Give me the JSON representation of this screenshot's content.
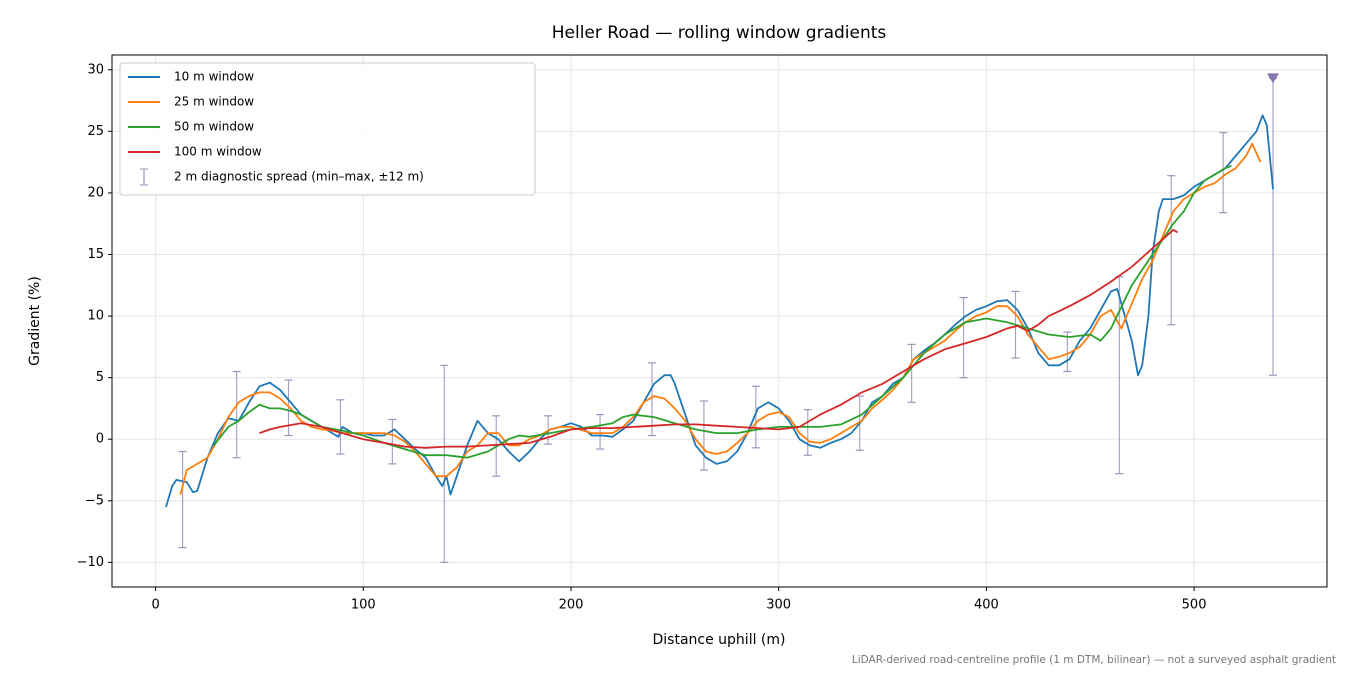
{
  "chart_data": {
    "type": "line",
    "title": "Heller Road — rolling window gradients",
    "xlabel": "Distance uphill (m)",
    "ylabel": "Gradient (%)",
    "footnote": "LiDAR-derived road-centreline profile (1 m DTM, bilinear) — not a surveyed asphalt gradient",
    "xlim": [
      -21,
      564
    ],
    "ylim": [
      -12,
      31.2
    ],
    "xticks": [
      0,
      100,
      200,
      300,
      400,
      500
    ],
    "yticks": [
      {
        "value": -10,
        "label": "−10"
      },
      {
        "value": -5,
        "label": "−5"
      },
      0,
      5,
      10,
      15,
      20,
      25,
      30
    ],
    "grid": true,
    "legend": "upper left",
    "series": [
      {
        "name": "10 m window",
        "color": "#1f77b4",
        "x": [
          5,
          8,
          10,
          15,
          18,
          20,
          25,
          30,
          35,
          40,
          45,
          50,
          55,
          60,
          65,
          70,
          75,
          80,
          85,
          88,
          90,
          95,
          100,
          105,
          110,
          115,
          120,
          125,
          130,
          135,
          138,
          140,
          142,
          145,
          150,
          155,
          160,
          165,
          170,
          175,
          180,
          185,
          190,
          195,
          200,
          205,
          210,
          215,
          220,
          225,
          230,
          235,
          240,
          245,
          248,
          250,
          255,
          260,
          265,
          270,
          275,
          280,
          285,
          290,
          295,
          300,
          305,
          310,
          315,
          320,
          325,
          330,
          335,
          340,
          345,
          350,
          355,
          360,
          365,
          370,
          375,
          380,
          385,
          390,
          395,
          400,
          405,
          410,
          415,
          420,
          425,
          430,
          435,
          440,
          445,
          450,
          455,
          460,
          463,
          465,
          470,
          473,
          475,
          478,
          480,
          483,
          485,
          490,
          495,
          500,
          505,
          510,
          515,
          520,
          525,
          530,
          533,
          535,
          538
        ],
        "values": [
          -5.5,
          -3.8,
          -3.3,
          -3.5,
          -4.3,
          -4.2,
          -1.5,
          0.5,
          1.7,
          1.5,
          3.0,
          4.3,
          4.6,
          4.0,
          3.0,
          2.0,
          1.5,
          1.0,
          0.5,
          0.2,
          1.0,
          0.5,
          0.5,
          0.3,
          0.3,
          0.8,
          0.0,
          -0.8,
          -1.5,
          -3.0,
          -3.8,
          -3.0,
          -4.5,
          -3.0,
          -0.5,
          1.5,
          0.5,
          0.0,
          -1.0,
          -1.8,
          -1.0,
          0.0,
          0.8,
          1.0,
          1.3,
          1.0,
          0.3,
          0.3,
          0.2,
          0.8,
          1.5,
          3.0,
          4.5,
          5.2,
          5.2,
          4.5,
          2.0,
          -0.5,
          -1.5,
          -2.0,
          -1.8,
          -1.0,
          0.5,
          2.5,
          3.0,
          2.5,
          1.5,
          0.0,
          -0.5,
          -0.7,
          -0.3,
          0.0,
          0.5,
          1.5,
          3.0,
          3.5,
          4.5,
          5.0,
          6.5,
          7.2,
          7.8,
          8.5,
          9.3,
          10.0,
          10.5,
          10.8,
          11.2,
          11.3,
          10.5,
          9.0,
          7.0,
          6.0,
          6.0,
          6.5,
          8.0,
          9.0,
          10.5,
          12.0,
          12.2,
          11.0,
          8.0,
          5.2,
          6.0,
          10.0,
          15.0,
          18.5,
          19.5,
          19.5,
          19.8,
          20.5,
          21.0,
          21.5,
          22.0,
          23.0,
          24.0,
          25.0,
          26.3,
          25.5,
          20.3
        ]
      },
      {
        "name": "25 m window",
        "color": "#ff7f0e",
        "x": [
          12,
          15,
          20,
          25,
          30,
          35,
          40,
          45,
          50,
          55,
          60,
          65,
          70,
          75,
          80,
          85,
          90,
          95,
          100,
          105,
          110,
          115,
          120,
          125,
          130,
          135,
          140,
          145,
          150,
          155,
          160,
          165,
          170,
          175,
          180,
          185,
          190,
          195,
          200,
          210,
          220,
          225,
          230,
          235,
          240,
          245,
          250,
          255,
          260,
          265,
          270,
          275,
          280,
          285,
          290,
          295,
          300,
          305,
          310,
          315,
          320,
          325,
          330,
          335,
          340,
          345,
          350,
          355,
          360,
          365,
          370,
          375,
          380,
          385,
          390,
          395,
          400,
          405,
          410,
          415,
          420,
          425,
          430,
          435,
          440,
          445,
          450,
          455,
          460,
          465,
          470,
          475,
          480,
          485,
          490,
          495,
          500,
          505,
          510,
          515,
          520,
          525,
          528,
          532
        ],
        "values": [
          -4.5,
          -2.5,
          -2.0,
          -1.5,
          0.0,
          1.8,
          3.0,
          3.5,
          3.8,
          3.8,
          3.3,
          2.5,
          1.5,
          1.0,
          0.8,
          0.7,
          0.5,
          0.5,
          0.5,
          0.5,
          0.5,
          0.3,
          -0.2,
          -1.0,
          -2.0,
          -3.0,
          -3.0,
          -2.3,
          -1.0,
          -0.5,
          0.5,
          0.5,
          -0.5,
          -0.5,
          0.0,
          0.3,
          0.8,
          1.0,
          1.0,
          0.5,
          0.5,
          1.0,
          1.8,
          3.0,
          3.5,
          3.3,
          2.5,
          1.5,
          0.0,
          -1.0,
          -1.2,
          -1.0,
          -0.3,
          0.5,
          1.5,
          2.0,
          2.2,
          1.8,
          0.5,
          -0.2,
          -0.3,
          0.0,
          0.5,
          1.0,
          1.5,
          2.5,
          3.2,
          4.0,
          5.0,
          6.5,
          7.0,
          7.5,
          8.0,
          8.8,
          9.5,
          10.0,
          10.3,
          10.8,
          10.8,
          10.0,
          8.5,
          7.5,
          6.5,
          6.7,
          7.0,
          7.5,
          8.5,
          10.0,
          10.5,
          9.0,
          11.0,
          13.0,
          14.5,
          16.5,
          18.5,
          19.5,
          20.0,
          20.5,
          20.8,
          21.5,
          22.0,
          23.0,
          24.0,
          22.5
        ]
      },
      {
        "name": "50 m window",
        "color": "#2ca02c",
        "x": [
          28,
          35,
          40,
          45,
          50,
          55,
          60,
          65,
          70,
          75,
          80,
          90,
          100,
          110,
          120,
          130,
          140,
          150,
          160,
          170,
          175,
          180,
          190,
          200,
          210,
          220,
          225,
          230,
          240,
          250,
          260,
          270,
          280,
          290,
          300,
          310,
          320,
          330,
          340,
          350,
          360,
          370,
          380,
          390,
          400,
          410,
          420,
          430,
          440,
          450,
          455,
          460,
          470,
          480,
          490,
          495,
          500,
          505,
          510,
          515,
          518
        ],
        "values": [
          -0.5,
          1.0,
          1.5,
          2.2,
          2.8,
          2.5,
          2.5,
          2.3,
          2.0,
          1.5,
          1.0,
          0.7,
          0.3,
          -0.3,
          -0.8,
          -1.3,
          -1.3,
          -1.5,
          -1.0,
          0.0,
          0.3,
          0.2,
          0.5,
          0.8,
          1.0,
          1.3,
          1.8,
          2.0,
          1.8,
          1.3,
          0.8,
          0.5,
          0.5,
          0.8,
          1.0,
          1.0,
          1.0,
          1.2,
          2.0,
          3.5,
          5.0,
          7.0,
          8.5,
          9.5,
          9.8,
          9.5,
          9.0,
          8.5,
          8.3,
          8.5,
          8.0,
          9.0,
          12.5,
          15.0,
          17.5,
          18.5,
          20.0,
          21.0,
          21.5,
          22.0,
          22.2
        ]
      },
      {
        "name": "100 m window",
        "color": "#d62728",
        "x": [
          50,
          55,
          60,
          70,
          80,
          90,
          100,
          110,
          120,
          130,
          140,
          150,
          160,
          170,
          180,
          190,
          200,
          210,
          220,
          230,
          240,
          250,
          260,
          270,
          280,
          290,
          300,
          310,
          320,
          330,
          340,
          350,
          360,
          370,
          380,
          390,
          400,
          410,
          415,
          420,
          425,
          430,
          440,
          450,
          460,
          470,
          480,
          490,
          492
        ],
        "values": [
          0.5,
          0.8,
          1.0,
          1.3,
          1.0,
          0.5,
          0.0,
          -0.3,
          -0.6,
          -0.7,
          -0.6,
          -0.6,
          -0.5,
          -0.4,
          -0.3,
          0.2,
          0.8,
          0.9,
          0.9,
          1.0,
          1.1,
          1.2,
          1.2,
          1.1,
          1.0,
          0.9,
          0.8,
          1.0,
          2.0,
          2.8,
          3.8,
          4.5,
          5.5,
          6.5,
          7.3,
          7.8,
          8.3,
          9.0,
          9.2,
          8.8,
          9.3,
          10.0,
          10.8,
          11.7,
          12.8,
          14.0,
          15.5,
          17.0,
          16.8
        ]
      }
    ],
    "errorbars": {
      "name": "2 m diagnostic spread (min–max, ±12 m)",
      "color": "#9a94bd",
      "x": [
        13,
        39,
        64,
        89,
        114,
        139,
        164,
        189,
        214,
        239,
        264,
        289,
        314,
        339,
        364,
        389,
        414,
        439,
        464,
        489,
        514,
        538
      ],
      "low": [
        -8.8,
        -1.5,
        0.3,
        -1.2,
        -2.0,
        -10.0,
        -3.0,
        -0.4,
        -0.8,
        0.3,
        -2.5,
        -0.7,
        -1.3,
        -0.9,
        3.0,
        5.0,
        6.6,
        5.5,
        -2.8,
        9.3,
        18.4,
        5.2
      ],
      "high": [
        -1.0,
        5.5,
        4.8,
        3.2,
        1.6,
        6.0,
        1.9,
        1.9,
        2.0,
        6.2,
        3.1,
        4.3,
        2.4,
        3.5,
        7.7,
        11.5,
        12.0,
        8.7,
        13.2,
        21.4,
        24.9,
        29.3
      ]
    }
  }
}
